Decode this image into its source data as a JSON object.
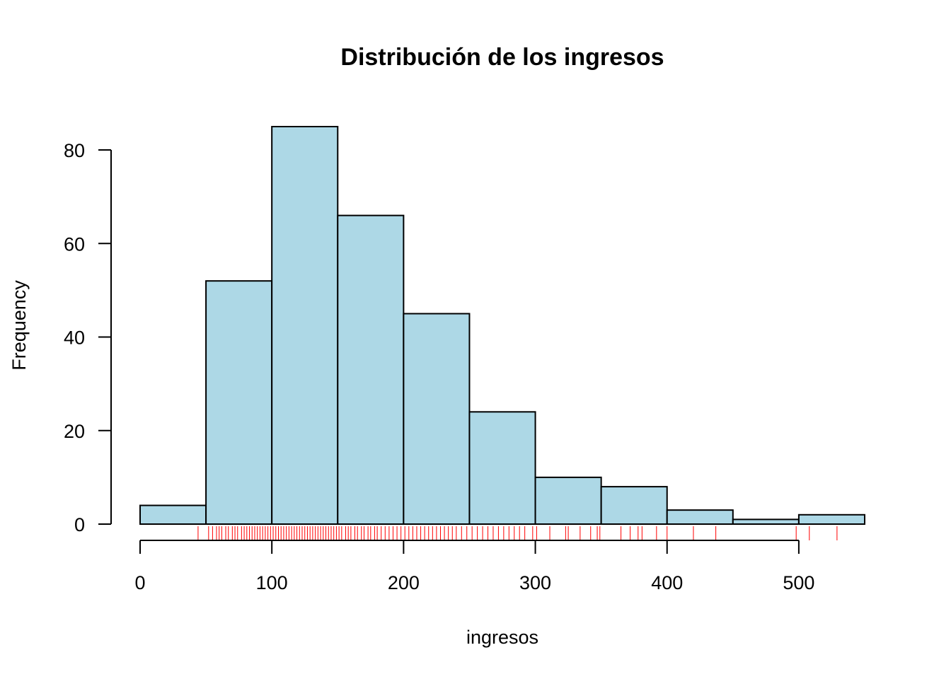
{
  "chart_data": {
    "type": "bar",
    "subtype": "histogram",
    "title": "Distribución de los ingresos",
    "xlabel": "ingresos",
    "ylabel": "Frequency",
    "bin_edges": [
      0,
      50,
      100,
      150,
      200,
      250,
      300,
      350,
      400,
      450,
      500,
      550
    ],
    "values": [
      4,
      52,
      85,
      66,
      45,
      24,
      10,
      8,
      3,
      1,
      2
    ],
    "xlim": [
      0,
      550
    ],
    "ylim": [
      0,
      85
    ],
    "x_ticks": [
      0,
      100,
      200,
      300,
      400,
      500
    ],
    "y_ticks": [
      0,
      20,
      40,
      60,
      80
    ],
    "grid": false,
    "legend": "none",
    "bar_color": "#ADD8E6",
    "bar_edge_color": "#000000",
    "rug": {
      "color": "#FF0000",
      "values": [
        44,
        52,
        55,
        58,
        60,
        62,
        65,
        67,
        70,
        72,
        74,
        77,
        79,
        81,
        83,
        85,
        87,
        89,
        91,
        93,
        95,
        97,
        99,
        101,
        103,
        105,
        107,
        109,
        111,
        113,
        115,
        117,
        119,
        121,
        123,
        125,
        127,
        129,
        131,
        133,
        135,
        137,
        139,
        141,
        143,
        145,
        147,
        149,
        151,
        153,
        156,
        158,
        160,
        163,
        165,
        168,
        170,
        173,
        175,
        178,
        180,
        183,
        186,
        189,
        192,
        195,
        198,
        201,
        204,
        207,
        210,
        213,
        216,
        219,
        222,
        225,
        228,
        231,
        234,
        237,
        240,
        244,
        248,
        252,
        256,
        260,
        264,
        268,
        272,
        276,
        280,
        284,
        288,
        292,
        298,
        301,
        311,
        323,
        325,
        334,
        342,
        347,
        349,
        365,
        372,
        378,
        381,
        392,
        400,
        420,
        437,
        498,
        508,
        529
      ]
    }
  }
}
